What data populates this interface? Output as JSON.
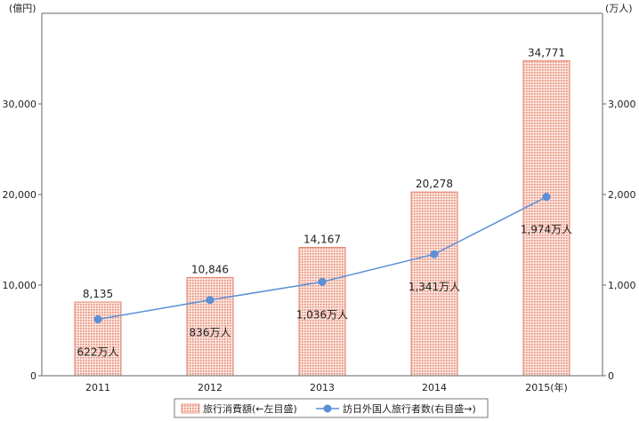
{
  "chart_data": {
    "type": "bar",
    "categories": [
      "2011",
      "2012",
      "2013",
      "2014",
      "2015(年)"
    ],
    "left_unit": "(億円)",
    "right_unit": "(万人)",
    "left_ylim": [
      0,
      40000
    ],
    "right_ylim": [
      0,
      4000
    ],
    "left_ticks": [
      0,
      10000,
      20000,
      30000
    ],
    "left_tick_labels": [
      "0",
      "10,000",
      "20,000",
      "30,000"
    ],
    "right_ticks": [
      0,
      1000,
      2000,
      3000
    ],
    "right_tick_labels": [
      "0",
      "1,000",
      "2,000",
      "3,000"
    ],
    "grid": false,
    "legend_position": "bottom",
    "series": [
      {
        "name": "旅行消費額(←左目盛)",
        "kind": "bar",
        "axis": "left",
        "values": [
          8135,
          10846,
          14167,
          20278,
          34771
        ],
        "labels": [
          "8,135",
          "10,846",
          "14,167",
          "20,278",
          "34,771"
        ],
        "color": "#d9534f"
      },
      {
        "name": "訪日外国人旅行者数(右目盛→)",
        "kind": "line",
        "axis": "right",
        "values": [
          622,
          836,
          1036,
          1341,
          1974
        ],
        "labels": [
          "622万人",
          "836万人",
          "1,036万人",
          "1,341万人",
          "1,974万人"
        ],
        "color": "#5b8fd6"
      }
    ]
  }
}
